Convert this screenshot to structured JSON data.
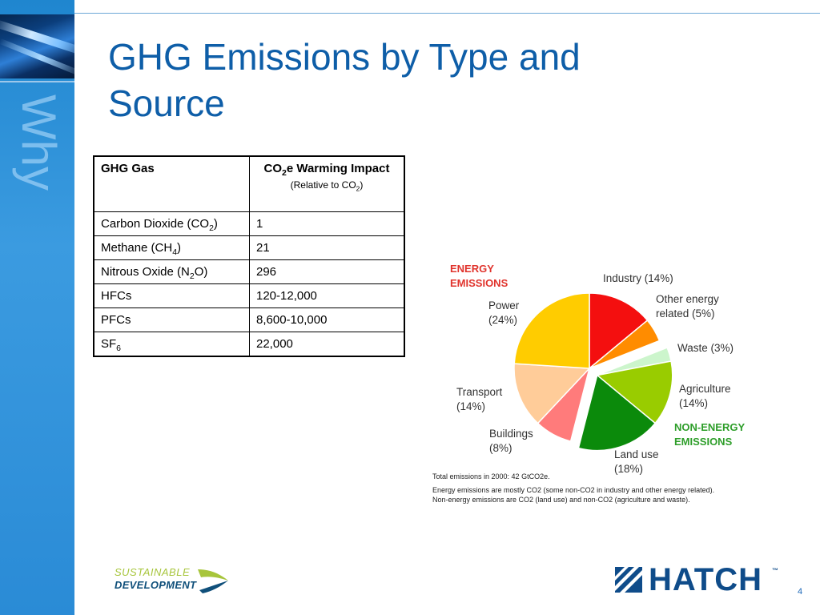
{
  "slide": {
    "title": "GHG Emissions by Type and Source",
    "sidebar_word": "Why",
    "page_number": "4"
  },
  "table": {
    "header_gas": "GHG Gas",
    "header_impact": "CO2e Warming Impact",
    "header_impact_sub": "(Relative to CO2)",
    "rows": [
      {
        "gas": "Carbon Dioxide (CO2)",
        "impact": "1"
      },
      {
        "gas": "Methane (CH4)",
        "impact": "21"
      },
      {
        "gas": "Nitrous Oxide (N2O)",
        "impact": "296"
      },
      {
        "gas": "HFCs",
        "impact": "120-12,000"
      },
      {
        "gas": "PFCs",
        "impact": "8,600-10,000"
      },
      {
        "gas": "SF6",
        "impact": "22,000"
      }
    ]
  },
  "chart_data": {
    "type": "pie",
    "unit": "%",
    "groups": [
      {
        "name": "ENERGY EMISSIONS",
        "color": "#e0332c"
      },
      {
        "name": "NON-ENERGY EMISSIONS",
        "color": "#2e9e2a"
      }
    ],
    "slices": [
      {
        "name": "Industry",
        "value": 14,
        "color": "#f40f0f",
        "group": "ENERGY EMISSIONS",
        "exploded": false
      },
      {
        "name": "Other energy related",
        "value": 5,
        "color": "#ff8c00",
        "group": "ENERGY EMISSIONS",
        "exploded": false
      },
      {
        "name": "Waste",
        "value": 3,
        "color": "#ccf5cc",
        "group": "NON-ENERGY EMISSIONS",
        "exploded": true
      },
      {
        "name": "Agriculture",
        "value": 14,
        "color": "#99cc00",
        "group": "NON-ENERGY EMISSIONS",
        "exploded": true
      },
      {
        "name": "Land use",
        "value": 18,
        "color": "#0b8a0b",
        "group": "NON-ENERGY EMISSIONS",
        "exploded": true
      },
      {
        "name": "Buildings",
        "value": 8,
        "color": "#ff7b7b",
        "group": "ENERGY EMISSIONS",
        "exploded": false
      },
      {
        "name": "Transport",
        "value": 14,
        "color": "#ffcc99",
        "group": "ENERGY EMISSIONS",
        "exploded": false
      },
      {
        "name": "Power",
        "value": 24,
        "color": "#ffcc00",
        "group": "ENERGY EMISSIONS",
        "exploded": false
      }
    ],
    "labels": {
      "industry": [
        "Industry (14%)"
      ],
      "other": [
        "Other energy",
        "related (5%)"
      ],
      "waste": [
        "Waste (3%)"
      ],
      "agriculture": [
        "Agriculture",
        "(14%)"
      ],
      "landuse": [
        "Land use",
        "(18%)"
      ],
      "buildings": [
        "Buildings",
        "(8%)"
      ],
      "transport": [
        "Transport",
        "(14%)"
      ],
      "power": [
        "Power",
        "(24%)"
      ]
    },
    "group_labels": {
      "energy": [
        "ENERGY",
        "EMISSIONS"
      ],
      "non_energy": [
        "NON-ENERGY",
        "EMISSIONS"
      ]
    },
    "notes": [
      "Total emissions in 2000: 42 GtCO2e.",
      "Energy emissions are mostly CO2 (some non-CO2 in industry and other energy related).",
      "Non-energy emissions are CO2 (land use) and non-CO2 (agriculture and waste)."
    ]
  },
  "footer": {
    "sd_line1": "SUSTAINABLE",
    "sd_line2": "DEVELOPMENT",
    "hatch_name": "HATCH",
    "hatch_tm": "™"
  }
}
